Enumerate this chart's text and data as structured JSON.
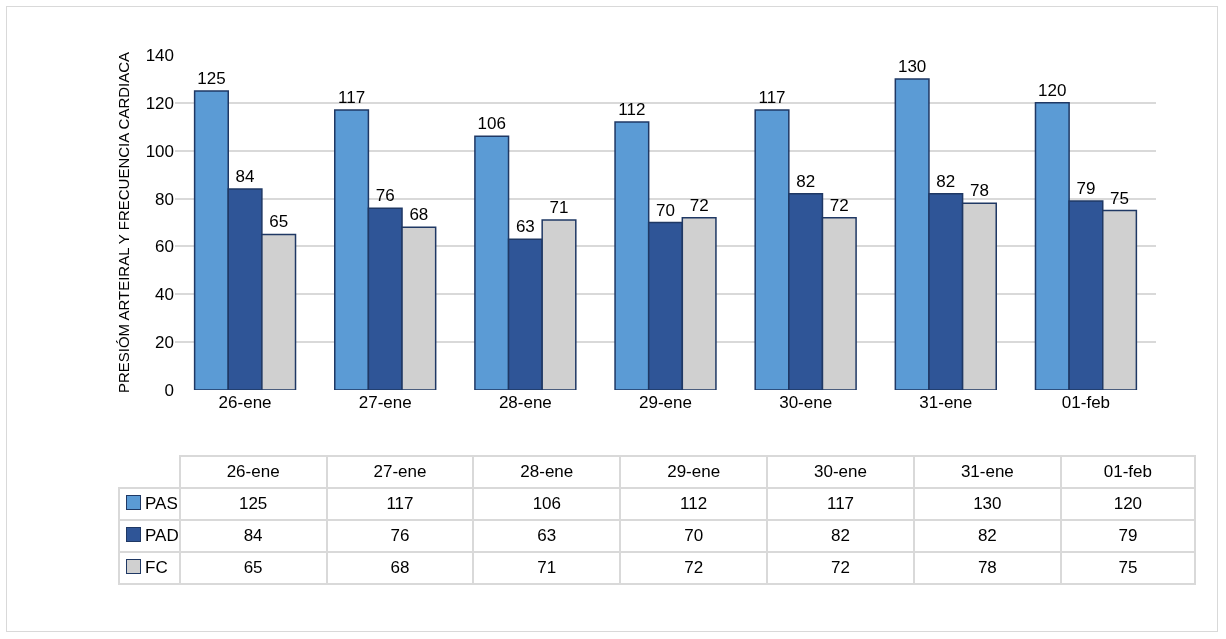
{
  "chart_data": {
    "type": "bar",
    "ylabel": "PRESIÓM ARTEIRAL Y FRECUENCIA CARDIACA",
    "categories": [
      "26-ene",
      "27-ene",
      "28-ene",
      "29-ene",
      "30-ene",
      "31-ene",
      "01-feb"
    ],
    "series": [
      {
        "name": "PAS",
        "color": "#5b9bd5",
        "values": [
          125,
          117,
          106,
          112,
          117,
          130,
          120
        ],
        "value_labels": [
          "125",
          "117",
          "106",
          "112",
          "117",
          "130",
          "120"
        ]
      },
      {
        "name": "PAD",
        "color": "#2f5597",
        "values": [
          84,
          76,
          63,
          70,
          82,
          82,
          79
        ],
        "value_labels": [
          "84",
          "76",
          "63",
          "70",
          "82",
          "82",
          "79"
        ]
      },
      {
        "name": "FC",
        "color": "#d0d0d0",
        "values": [
          65,
          68,
          71,
          72,
          72,
          78,
          75
        ],
        "value_labels": [
          "65",
          "68",
          "71",
          "72",
          "72",
          "78",
          "75"
        ]
      }
    ],
    "ylim": [
      0,
      140
    ],
    "yticks": [
      0,
      20,
      40,
      60,
      80,
      100,
      120,
      140
    ],
    "grid": "y",
    "data_labels": true,
    "legend": "bottom"
  }
}
